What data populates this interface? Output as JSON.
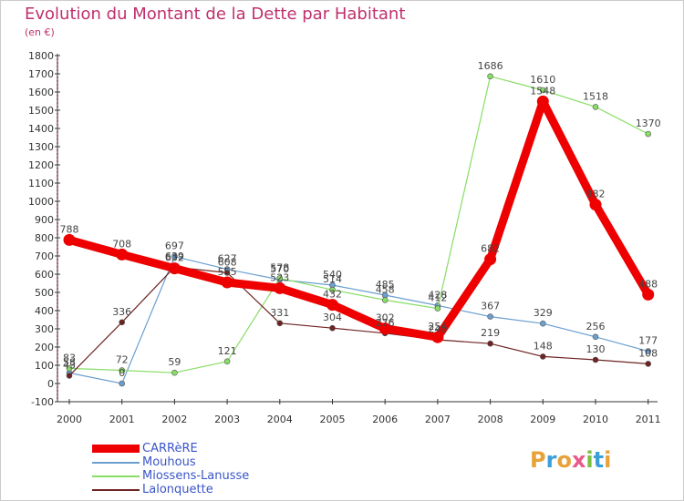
{
  "title": "Evolution du Montant de la Dette par Habitant",
  "subtitle": "(en €)",
  "logo": {
    "text": "Proxiti",
    "colors": [
      "#e8a23a",
      "#3ca0d8",
      "#e8a23a",
      "#e85a8a",
      "#7ac040",
      "#3ca0d8",
      "#e8a23a"
    ]
  },
  "chart_data": {
    "type": "line",
    "x": [
      "2000",
      "2001",
      "2002",
      "2003",
      "2004",
      "2005",
      "2006",
      "2007",
      "2008",
      "2009",
      "2010",
      "2011"
    ],
    "ylim": [
      -100,
      1800
    ],
    "yticks": [
      "-100",
      "0",
      "100",
      "200",
      "300",
      "400",
      "500",
      "600",
      "700",
      "800",
      "900",
      "1000",
      "1100",
      "1200",
      "1300",
      "1400",
      "1500",
      "1600",
      "1700",
      "1800"
    ],
    "grid": false,
    "legend_position": "bottom-left",
    "series": [
      {
        "name": "CARRèRE",
        "color": "#ee0000",
        "thick": true,
        "values": [
          788,
          708,
          632,
          555,
          523,
          432,
          302,
          254,
          682,
          1548,
          982,
          488
        ]
      },
      {
        "name": "Mouhous",
        "color": "#6b9fd0",
        "thick": false,
        "values": [
          58,
          0,
          697,
          627,
          570,
          540,
          485,
          428,
          367,
          329,
          256,
          177
        ]
      },
      {
        "name": "Miossens-Lanusse",
        "color": "#88dd66",
        "thick": false,
        "values": [
          83,
          72,
          59,
          121,
          578,
          514,
          458,
          412,
          1686,
          1610,
          1518,
          1370
        ]
      },
      {
        "name": "Lalonquette",
        "color": "#6e2222",
        "thick": false,
        "values": [
          43,
          336,
          639,
          608,
          331,
          304,
          276,
          240,
          219,
          148,
          130,
          108
        ]
      }
    ]
  }
}
